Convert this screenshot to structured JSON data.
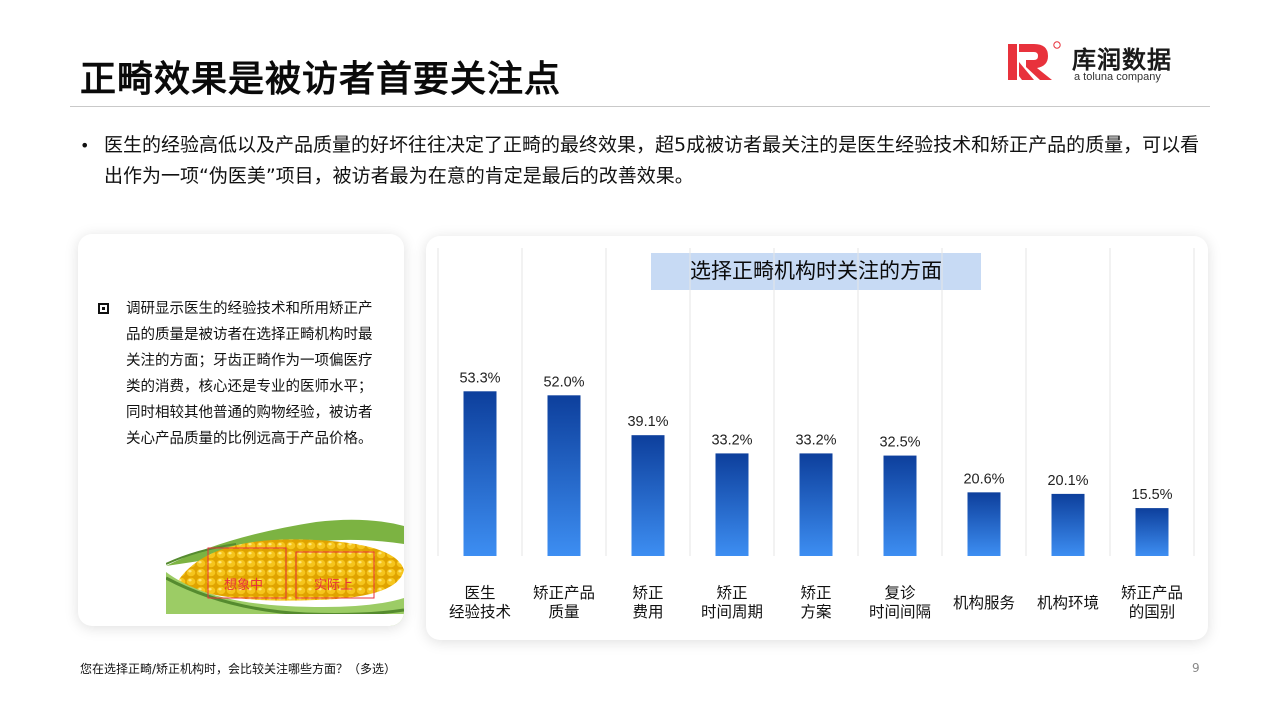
{
  "page": {
    "title": "正畸效果是被访者首要关注点",
    "summary": "医生的经验高低以及产品质量的好坏往往决定了正畸的最终效果，超5成被访者最关注的是医生经验技术和矫正产品的质量，可以看出作为一项“伪医美”项目，被访者最为在意的肯定是最后的改善效果。",
    "bullet": "•",
    "footnote": "您在选择正畸/矫正机构时，会比较关注哪些方面？（多选）",
    "page_number": "9"
  },
  "logo": {
    "name": "库润数据",
    "tagline": "a toluna company",
    "brand_color": "#e8323c"
  },
  "left_panel": {
    "note": "调研显示医生的经验技术和所用矫正产品的质量是被访者在选择正畸机构时最关注的方面；牙齿正畸作为一项偏医疗类的消费，核心还是专业的医师水平；同时相较其他普通的购物经验，被访者关心产品质量的比例远高于产品价格。",
    "image_labels": [
      "想象中",
      "实际上"
    ],
    "image_label_color": "#e8323c"
  },
  "colors": {
    "bar_top": "#0d3f9c",
    "bar_bottom": "#3d8ef2",
    "title_bg": "#c7daf4"
  },
  "chart_data": {
    "type": "bar",
    "title": "选择正畸机构时关注的方面",
    "categories": [
      [
        "医生",
        "经验技术"
      ],
      [
        "矫正产品",
        "质量"
      ],
      [
        "矫正",
        "费用"
      ],
      [
        "矫正",
        "时间周期"
      ],
      [
        "矫正",
        "方案"
      ],
      [
        "复诊",
        "时间间隔"
      ],
      [
        "机构服务"
      ],
      [
        "机构环境"
      ],
      [
        "矫正产品",
        "的国别"
      ]
    ],
    "values": [
      53.3,
      52.0,
      39.1,
      33.2,
      33.2,
      32.5,
      20.6,
      20.1,
      15.5
    ],
    "value_labels": [
      "53.3%",
      "52.0%",
      "39.1%",
      "33.2%",
      "33.2%",
      "32.5%",
      "20.6%",
      "20.1%",
      "15.5%"
    ],
    "ylim": [
      0,
      100
    ],
    "grid": true
  }
}
